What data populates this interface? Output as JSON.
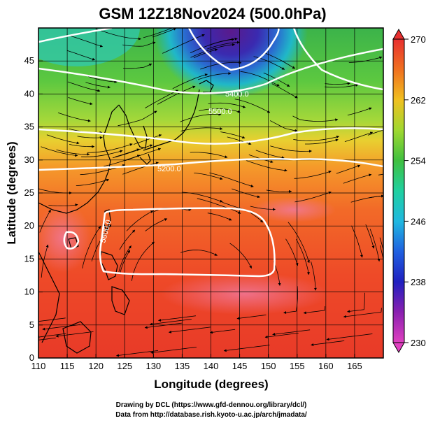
{
  "title": "GSM 12Z18Nov2024 (500.0hPa)",
  "xlabel": "Longitude (degrees)",
  "ylabel": "Latitude  (degrees)",
  "x_ticks": [
    "110",
    "115",
    "120",
    "125",
    "130",
    "135",
    "140",
    "145",
    "150",
    "155",
    "160",
    "165"
  ],
  "y_ticks": [
    "0",
    "5",
    "10",
    "15",
    "20",
    "25",
    "30",
    "35",
    "40",
    "45"
  ],
  "colorbar": {
    "labels": [
      "230",
      "238",
      "246",
      "254",
      "262",
      "270"
    ],
    "values": [
      230,
      238,
      246,
      254,
      262,
      270
    ],
    "min": 230,
    "max": 270
  },
  "contour_labels": [
    "5400.0",
    "5500.0",
    "5200.0",
    "5800.0"
  ],
  "contour_label_values": [
    5400,
    5500,
    5200,
    5800
  ],
  "map_extent": {
    "lon_min": 110,
    "lon_max": 170,
    "lat_min": 0,
    "lat_max": 50
  },
  "credits": {
    "line1": "Drawing by DCL (https://www.gfd-dennou.org/library/dcl/)",
    "line2": "Data from http://database.rish.kyoto-u.ac.jp/arch/jmadata/"
  },
  "colors": {
    "cold": "#6a1b9a",
    "warm": "#e53935",
    "contour": "#ffffff",
    "streamline": "#000000"
  }
}
